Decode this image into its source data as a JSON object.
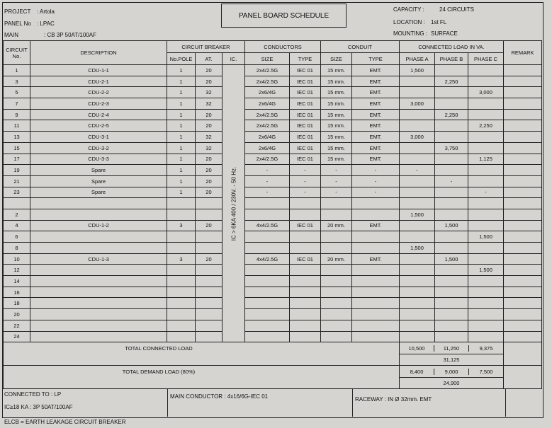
{
  "header": {
    "project_label": "PROJECT",
    "project": ": Artola",
    "panel_label": "PANEL No",
    "panel": ":   LPAC",
    "main_label": "MAIN",
    "main": ":   CB 3P 50AT/100AF",
    "title": "PANEL BOARD SCHEDULE",
    "capacity_label": "CAPACITY  :",
    "capacity": "24 CIRCUITS",
    "location_label": "LOCATION  :",
    "location": "1st FL",
    "mounting_label": "MOUNTING :",
    "mounting": "SURFACE"
  },
  "columns": {
    "circuit": "CIRCUIT",
    "circuit_no": "No.",
    "description": "DESCRIPTION",
    "circuit_breaker": "CIRCUIT BREAKER",
    "no_pole": "No.POLE",
    "at": "AT.",
    "ic": "IC.",
    "conductors": "CONDUCTORS",
    "cond_size": "SIZE",
    "cond_type": "TYPE",
    "conduit": "CONDUIT",
    "conduit_size": "SIZE",
    "conduit_type": "TYPE",
    "connected_load": "CONNECTED LOAD IN VA.",
    "phase_a": "PHASE A",
    "phase_b": "PHASE B",
    "phase_c": "PHASE C",
    "remark": "REMARK"
  },
  "ic_note": "IC > 6KA   400 / 230V. - 50 Hz.",
  "rows": [
    [
      "1",
      "CDU-1-1",
      "1",
      "20",
      "2x4/2.5G",
      "IEC 01",
      "15 mm.",
      "EMT.",
      "1,500",
      "",
      ""
    ],
    [
      "3",
      "CDU-2-1",
      "1",
      "20",
      "2x4/2.5G",
      "IEC 01",
      "15 mm.",
      "EMT.",
      "",
      "2,250",
      ""
    ],
    [
      "5",
      "CDU-2-2",
      "1",
      "32",
      "2x6/4G",
      "IEC 01",
      "15 mm.",
      "EMT.",
      "",
      "",
      "3,000"
    ],
    [
      "7",
      "CDU-2-3",
      "1",
      "32",
      "2x6/4G",
      "IEC 01",
      "15 mm.",
      "EMT.",
      "3,000",
      "",
      ""
    ],
    [
      "9",
      "CDU-2-4",
      "1",
      "20",
      "2x4/2.5G",
      "IEC 01",
      "15 mm.",
      "EMT.",
      "",
      "2,250",
      ""
    ],
    [
      "11",
      "CDU-2-5",
      "1",
      "20",
      "2x4/2.5G",
      "IEC 01",
      "15 mm.",
      "EMT.",
      "",
      "",
      "2,250"
    ],
    [
      "13",
      "CDU-3-1",
      "1",
      "32",
      "2x6/4G",
      "IEC 01",
      "15 mm.",
      "EMT.",
      "3,000",
      "",
      ""
    ],
    [
      "15",
      "CDU-3-2",
      "1",
      "32",
      "2x6/4G",
      "IEC 01",
      "15 mm.",
      "EMT.",
      "",
      "3,750",
      ""
    ],
    [
      "17",
      "CDU-3-3",
      "1",
      "20",
      "2x4/2.5G",
      "IEC 01",
      "15 mm.",
      "EMT.",
      "",
      "",
      "1,125"
    ],
    [
      "19",
      "Spare",
      "1",
      "20",
      "-",
      "-",
      "-",
      "-",
      "-",
      "",
      ""
    ],
    [
      "21",
      "Spare",
      "1",
      "20",
      "-",
      "-",
      "-",
      "-",
      "",
      "-",
      ""
    ],
    [
      "23",
      "Spare",
      "1",
      "20",
      "-",
      "-",
      "-",
      "-",
      "",
      "",
      "-"
    ],
    [
      "",
      "",
      "",
      "",
      "",
      "",
      "",
      "",
      "",
      "",
      ""
    ],
    [
      "2",
      "",
      "",
      "",
      "",
      "",
      "",
      "",
      "1,500",
      "",
      ""
    ],
    [
      "4",
      "CDU-1-2",
      "3",
      "20",
      "4x4/2.5G",
      "IEC 01",
      "20 mm.",
      "EMT.",
      "",
      "1,500",
      ""
    ],
    [
      "6",
      "",
      "",
      "",
      "",
      "",
      "",
      "",
      "",
      "",
      "1,500"
    ],
    [
      "8",
      "",
      "",
      "",
      "",
      "",
      "",
      "",
      "1,500",
      "",
      ""
    ],
    [
      "10",
      "CDU-1-3",
      "3",
      "20",
      "4x4/2.5G",
      "IEC 01",
      "20 mm.",
      "EMT.",
      "",
      "1,500",
      ""
    ],
    [
      "12",
      "",
      "",
      "",
      "",
      "",
      "",
      "",
      "",
      "",
      "1,500"
    ],
    [
      "14",
      "",
      "",
      "",
      "",
      "",
      "",
      "",
      "",
      "",
      ""
    ],
    [
      "16",
      "",
      "",
      "",
      "",
      "",
      "",
      "",
      "",
      "",
      ""
    ],
    [
      "18",
      "",
      "",
      "",
      "",
      "",
      "",
      "",
      "",
      "",
      ""
    ],
    [
      "20",
      "",
      "",
      "",
      "",
      "",
      "",
      "",
      "",
      "",
      ""
    ],
    [
      "22",
      "",
      "",
      "",
      "",
      "",
      "",
      "",
      "",
      "",
      ""
    ],
    [
      "24",
      "",
      "",
      "",
      "",
      "",
      "",
      "",
      "",
      "",
      ""
    ]
  ],
  "totals": {
    "connected_label": "TOTAL CONNECTED LOAD",
    "connected": [
      "10,500",
      "11,250",
      "9,375"
    ],
    "connected_sum": "31,125",
    "demand_label": "TOTAL DEMAND LOAD (80%)",
    "demand": [
      "8,400",
      "9,000",
      "7,500"
    ],
    "demand_sum": "24,900"
  },
  "footer": {
    "connected_to": "CONNECTED  TO  :   LP",
    "ic_rating": "IC≥18 KA : 3P 50AT/100AF",
    "main_conductor": "MAIN CONDUCTOR :   4x16/6G-IEC 01",
    "raceway": "RACEWAY :   IN Ø 32mm. EMT",
    "note": "ELCB = EARTH LEAKAGE CIRCUIT BREAKER"
  }
}
